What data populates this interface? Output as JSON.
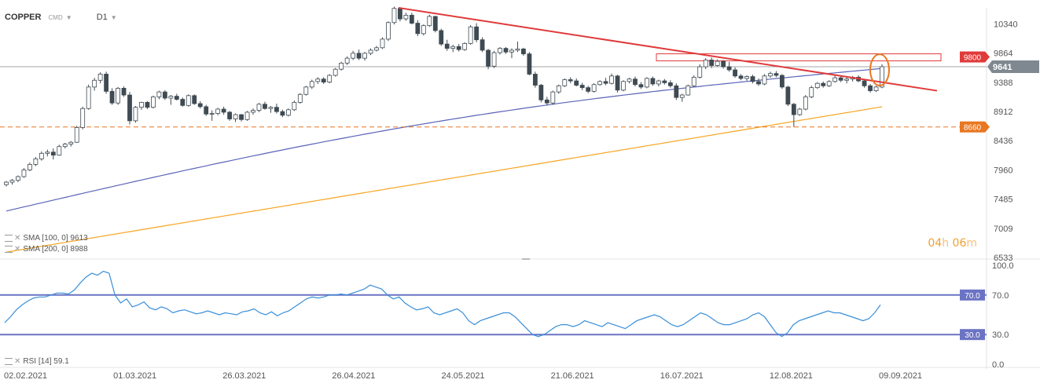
{
  "header": {
    "symbol": "COPPER",
    "exchange": "CMD",
    "timeframe": "D1"
  },
  "legend": {
    "sma100": "SMA [100, 0] 9613",
    "sma200": "SMA [200, 0] 8988",
    "rsi": "RSI [14] 59.1"
  },
  "timer": {
    "hours": "04",
    "h_unit": "h",
    "minutes": "06",
    "m_unit": "m"
  },
  "colors": {
    "up": "#ffffff",
    "down": "#3f4a52",
    "sma100": "#5b63b7",
    "sma200": "#f6a623",
    "trend": "#e03a3a",
    "support": "#e87722",
    "rsi": "#3a8fd8",
    "rsi_level": "#6b73c4",
    "badge_red": "#e03a3a",
    "badge_dark": "#7f8891",
    "badge_orange": "#e87722"
  },
  "chart_data": [
    {
      "type": "candlestick",
      "title": "COPPER",
      "ylim": [
        6533,
        10600
      ],
      "y_ticks": [
        "10340",
        "9864",
        "9388",
        "8912",
        "8436",
        "7960",
        "7485",
        "7009",
        "6533"
      ],
      "x_ticks": [
        "02.02.2021",
        "01.03.2021",
        "26.03.2021",
        "26.04.2021",
        "24.05.2021",
        "21.06.2021",
        "16.07.2021",
        "12.08.2021",
        "09.09.2021"
      ],
      "levels": [
        {
          "value": 9641,
          "label": "9641",
          "style": "current"
        },
        {
          "value": 9800,
          "label": "9800",
          "style": "resistance"
        },
        {
          "value": 8660,
          "label": "8660",
          "style": "support"
        }
      ],
      "ohlc": [
        [
          7720,
          7780,
          7690,
          7760
        ],
        [
          7760,
          7810,
          7720,
          7790
        ],
        [
          7790,
          7870,
          7760,
          7850
        ],
        [
          7850,
          7990,
          7830,
          7960
        ],
        [
          7960,
          8080,
          7940,
          8050
        ],
        [
          8050,
          8170,
          8020,
          8140
        ],
        [
          8140,
          8260,
          8110,
          8230
        ],
        [
          8230,
          8290,
          8180,
          8250
        ],
        [
          8250,
          8310,
          8130,
          8200
        ],
        [
          8200,
          8370,
          8190,
          8340
        ],
        [
          8340,
          8400,
          8310,
          8380
        ],
        [
          8380,
          8430,
          8340,
          8410
        ],
        [
          8410,
          8680,
          8400,
          8650
        ],
        [
          8650,
          8990,
          8620,
          8960
        ],
        [
          8960,
          9350,
          8940,
          9310
        ],
        [
          9310,
          9460,
          9250,
          9420
        ],
        [
          9420,
          9550,
          9370,
          9520
        ],
        [
          9520,
          9560,
          9200,
          9240
        ],
        [
          9240,
          9290,
          9020,
          9050
        ],
        [
          9050,
          9310,
          9020,
          9290
        ],
        [
          9290,
          9320,
          9150,
          9180
        ],
        [
          9180,
          9230,
          8700,
          8760
        ],
        [
          8760,
          9000,
          8730,
          8980
        ],
        [
          8980,
          9070,
          8940,
          9060
        ],
        [
          9060,
          9080,
          8950,
          8980
        ],
        [
          8980,
          9170,
          8960,
          9150
        ],
        [
          9150,
          9250,
          9110,
          9230
        ],
        [
          9230,
          9260,
          9100,
          9130
        ],
        [
          9130,
          9180,
          9020,
          9160
        ],
        [
          9160,
          9200,
          9090,
          9110
        ],
        [
          9110,
          9140,
          8990,
          9010
        ],
        [
          9010,
          9190,
          8990,
          9170
        ],
        [
          9170,
          9190,
          9020,
          9040
        ],
        [
          9040,
          9080,
          8960,
          8990
        ],
        [
          8990,
          9020,
          8840,
          8870
        ],
        [
          8870,
          8930,
          8760,
          8880
        ],
        [
          8880,
          8970,
          8850,
          8950
        ],
        [
          8950,
          8990,
          8860,
          8900
        ],
        [
          8900,
          8920,
          8760,
          8790
        ],
        [
          8790,
          8880,
          8740,
          8860
        ],
        [
          8860,
          8870,
          8750,
          8780
        ],
        [
          8780,
          8920,
          8760,
          8900
        ],
        [
          8900,
          8960,
          8860,
          8930
        ],
        [
          8930,
          9050,
          8900,
          9030
        ],
        [
          9030,
          9070,
          8940,
          8960
        ],
        [
          8960,
          9000,
          8890,
          8980
        ],
        [
          8980,
          9040,
          8880,
          8910
        ],
        [
          8910,
          8940,
          8820,
          8850
        ],
        [
          8850,
          8960,
          8830,
          8940
        ],
        [
          8940,
          9090,
          8920,
          9060
        ],
        [
          9060,
          9210,
          9040,
          9190
        ],
        [
          9190,
          9330,
          9170,
          9310
        ],
        [
          9310,
          9430,
          9280,
          9400
        ],
        [
          9400,
          9470,
          9360,
          9440
        ],
        [
          9440,
          9470,
          9360,
          9390
        ],
        [
          9390,
          9520,
          9370,
          9500
        ],
        [
          9500,
          9620,
          9480,
          9600
        ],
        [
          9600,
          9720,
          9580,
          9700
        ],
        [
          9700,
          9810,
          9670,
          9780
        ],
        [
          9780,
          9900,
          9750,
          9860
        ],
        [
          9860,
          9920,
          9750,
          9780
        ],
        [
          9780,
          9880,
          9740,
          9860
        ],
        [
          9860,
          9940,
          9830,
          9910
        ],
        [
          9910,
          9980,
          9890,
          9950
        ],
        [
          9950,
          10120,
          9930,
          10090
        ],
        [
          10090,
          10380,
          10060,
          10360
        ],
        [
          10360,
          10620,
          10330,
          10590
        ],
        [
          10590,
          10610,
          10380,
          10420
        ],
        [
          10420,
          10520,
          10390,
          10480
        ],
        [
          10480,
          10520,
          10330,
          10350
        ],
        [
          10350,
          10400,
          10140,
          10180
        ],
        [
          10180,
          10330,
          10150,
          10310
        ],
        [
          10310,
          10490,
          10290,
          10460
        ],
        [
          10460,
          10470,
          10200,
          10230
        ],
        [
          10230,
          10260,
          9980,
          10010
        ],
        [
          10010,
          10080,
          9900,
          9940
        ],
        [
          9940,
          10000,
          9880,
          9970
        ],
        [
          9970,
          10010,
          9890,
          9920
        ],
        [
          9920,
          10040,
          9900,
          10020
        ],
        [
          10020,
          10320,
          10000,
          10290
        ],
        [
          10290,
          10350,
          10040,
          10080
        ],
        [
          10080,
          10120,
          9880,
          9910
        ],
        [
          9910,
          9930,
          9600,
          9650
        ],
        [
          9650,
          9900,
          9620,
          9870
        ],
        [
          9870,
          9960,
          9840,
          9940
        ],
        [
          9940,
          9960,
          9850,
          9880
        ],
        [
          9880,
          9940,
          9780,
          9910
        ],
        [
          9910,
          10050,
          9880,
          9930
        ],
        [
          9930,
          9950,
          9820,
          9850
        ],
        [
          9850,
          9880,
          9500,
          9520
        ],
        [
          9520,
          9560,
          9300,
          9340
        ],
        [
          9340,
          9360,
          9060,
          9100
        ],
        [
          9100,
          9150,
          9010,
          9050
        ],
        [
          9050,
          9250,
          9020,
          9230
        ],
        [
          9230,
          9350,
          9200,
          9330
        ],
        [
          9330,
          9450,
          9310,
          9430
        ],
        [
          9430,
          9470,
          9370,
          9410
        ],
        [
          9410,
          9450,
          9320,
          9340
        ],
        [
          9340,
          9380,
          9260,
          9300
        ],
        [
          9300,
          9330,
          9210,
          9240
        ],
        [
          9240,
          9370,
          9220,
          9350
        ],
        [
          9350,
          9420,
          9330,
          9400
        ],
        [
          9400,
          9460,
          9340,
          9370
        ],
        [
          9370,
          9530,
          9350,
          9490
        ],
        [
          9490,
          9510,
          9220,
          9260
        ],
        [
          9260,
          9420,
          9240,
          9400
        ],
        [
          9400,
          9460,
          9370,
          9440
        ],
        [
          9440,
          9480,
          9320,
          9350
        ],
        [
          9350,
          9390,
          9280,
          9310
        ],
        [
          9310,
          9470,
          9290,
          9450
        ],
        [
          9450,
          9480,
          9330,
          9360
        ],
        [
          9360,
          9430,
          9320,
          9410
        ],
        [
          9410,
          9440,
          9350,
          9380
        ],
        [
          9380,
          9420,
          9300,
          9330
        ],
        [
          9330,
          9370,
          9100,
          9140
        ],
        [
          9140,
          9200,
          9070,
          9180
        ],
        [
          9180,
          9350,
          9170,
          9330
        ],
        [
          9330,
          9500,
          9310,
          9470
        ],
        [
          9470,
          9680,
          9450,
          9640
        ],
        [
          9640,
          9780,
          9600,
          9750
        ],
        [
          9750,
          9790,
          9620,
          9660
        ],
        [
          9660,
          9760,
          9640,
          9730
        ],
        [
          9730,
          9750,
          9610,
          9640
        ],
        [
          9640,
          9720,
          9560,
          9590
        ],
        [
          9590,
          9630,
          9460,
          9490
        ],
        [
          9490,
          9520,
          9420,
          9450
        ],
        [
          9450,
          9500,
          9410,
          9480
        ],
        [
          9480,
          9510,
          9370,
          9400
        ],
        [
          9400,
          9450,
          9330,
          9360
        ],
        [
          9360,
          9520,
          9340,
          9490
        ],
        [
          9490,
          9560,
          9460,
          9530
        ],
        [
          9530,
          9570,
          9470,
          9500
        ],
        [
          9500,
          9520,
          9280,
          9310
        ],
        [
          9310,
          9330,
          9000,
          9030
        ],
        [
          9030,
          9050,
          8660,
          8860
        ],
        [
          8860,
          8970,
          8840,
          8950
        ],
        [
          8950,
          9180,
          8930,
          9150
        ],
        [
          9150,
          9330,
          9130,
          9300
        ],
        [
          9300,
          9390,
          9280,
          9370
        ],
        [
          9370,
          9400,
          9300,
          9330
        ],
        [
          9330,
          9420,
          9310,
          9400
        ],
        [
          9400,
          9500,
          9380,
          9460
        ],
        [
          9460,
          9500,
          9390,
          9420
        ],
        [
          9420,
          9480,
          9370,
          9440
        ],
        [
          9440,
          9490,
          9400,
          9470
        ],
        [
          9470,
          9500,
          9390,
          9410
        ],
        [
          9410,
          9430,
          9300,
          9330
        ],
        [
          9330,
          9360,
          9220,
          9250
        ],
        [
          9250,
          9330,
          9230,
          9310
        ],
        [
          9310,
          9680,
          9290,
          9641
        ]
      ],
      "series": [
        {
          "name": "SMA [100, 0] 9613",
          "values": [
            7290,
            9613
          ]
        },
        {
          "name": "SMA [200, 0] 8988",
          "values": [
            6620,
            8988
          ]
        }
      ]
    },
    {
      "type": "line",
      "title": "RSI [14] 59.1",
      "ylim": [
        0,
        100
      ],
      "y_ticks": [
        "100.0",
        "70.0",
        "30.0",
        "0.0"
      ],
      "levels": [
        {
          "value": 70,
          "label": "70.0"
        },
        {
          "value": 30,
          "label": "30.0"
        }
      ],
      "series": [
        {
          "name": "RSI [14] 59.1",
          "values": [
            42,
            48,
            55,
            60,
            64,
            67,
            68,
            68,
            70,
            72,
            72,
            71,
            75,
            82,
            88,
            92,
            90,
            94,
            92,
            70,
            62,
            66,
            58,
            60,
            63,
            57,
            55,
            58,
            56,
            52,
            54,
            55,
            53,
            51,
            52,
            54,
            52,
            50,
            52,
            51,
            50,
            53,
            54,
            56,
            52,
            50,
            53,
            49,
            52,
            54,
            58,
            62,
            66,
            68,
            67,
            68,
            70,
            70,
            71,
            70,
            72,
            74,
            76,
            80,
            78,
            76,
            70,
            66,
            68,
            62,
            58,
            55,
            56,
            58,
            52,
            50,
            52,
            54,
            56,
            52,
            44,
            40,
            44,
            46,
            48,
            50,
            52,
            52,
            48,
            42,
            36,
            30,
            28,
            30,
            34,
            38,
            40,
            40,
            38,
            40,
            44,
            42,
            40,
            38,
            42,
            40,
            38,
            36,
            40,
            44,
            46,
            48,
            50,
            48,
            44,
            40,
            38,
            40,
            44,
            48,
            52,
            50,
            46,
            42,
            40,
            40,
            42,
            44,
            46,
            50,
            52,
            48,
            40,
            32,
            28,
            32,
            40,
            44,
            46,
            48,
            50,
            52,
            54,
            52,
            52,
            50,
            48,
            46,
            44,
            46,
            52,
            60
          ]
        }
      ]
    }
  ]
}
